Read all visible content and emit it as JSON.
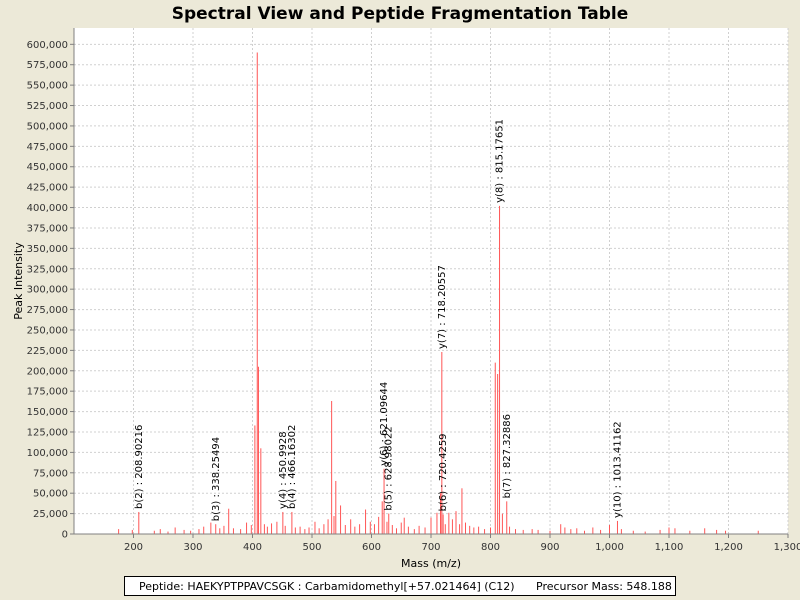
{
  "chart_data": {
    "type": "bar",
    "title": "Spectral View and Peptide Fragmentation Table",
    "xlabel": "Mass (m/z)",
    "ylabel": "Peak Intensity",
    "xlim": [
      100,
      1300
    ],
    "ylim": [
      0,
      620000
    ],
    "xticks": [
      200,
      300,
      400,
      500,
      600,
      700,
      800,
      900,
      1000,
      1100,
      1200,
      1300
    ],
    "xtick_labels": [
      "200",
      "300",
      "400",
      "500",
      "600",
      "700",
      "800",
      "900",
      "1,000",
      "1,100",
      "1,200",
      "1,300"
    ],
    "yticks": [
      0,
      25000,
      50000,
      75000,
      100000,
      125000,
      150000,
      175000,
      200000,
      225000,
      250000,
      275000,
      300000,
      325000,
      350000,
      375000,
      400000,
      425000,
      450000,
      475000,
      500000,
      525000,
      550000,
      575000,
      600000
    ],
    "ytick_labels": [
      "0",
      "25,000",
      "50,000",
      "75,000",
      "100,000",
      "125,000",
      "150,000",
      "175,000",
      "200,000",
      "225,000",
      "250,000",
      "275,000",
      "300,000",
      "325,000",
      "350,000",
      "375,000",
      "400,000",
      "425,000",
      "450,000",
      "475,000",
      "500,000",
      "525,000",
      "550,000",
      "575,000",
      "600,000"
    ],
    "grid": true,
    "bar_color": "#ff5555",
    "peaks": [
      [
        175,
        6000
      ],
      [
        198,
        5000
      ],
      [
        208.9,
        27000
      ],
      [
        235,
        4000
      ],
      [
        245,
        6000
      ],
      [
        258,
        3000
      ],
      [
        270,
        8000
      ],
      [
        285,
        5000
      ],
      [
        296,
        4000
      ],
      [
        310,
        6000
      ],
      [
        318,
        9000
      ],
      [
        330,
        14000
      ],
      [
        338.2,
        12000
      ],
      [
        345,
        7000
      ],
      [
        352,
        10000
      ],
      [
        360,
        31000
      ],
      [
        368,
        7000
      ],
      [
        380,
        6000
      ],
      [
        390,
        14000
      ],
      [
        398,
        11000
      ],
      [
        404,
        133000
      ],
      [
        408,
        590000
      ],
      [
        410,
        205000
      ],
      [
        414,
        105000
      ],
      [
        420,
        12000
      ],
      [
        425,
        9000
      ],
      [
        432,
        13000
      ],
      [
        441,
        15000
      ],
      [
        451,
        27000
      ],
      [
        455,
        10000
      ],
      [
        466.2,
        27000
      ],
      [
        472,
        8000
      ],
      [
        480,
        9000
      ],
      [
        488,
        6000
      ],
      [
        495,
        8000
      ],
      [
        505,
        15000
      ],
      [
        512,
        7000
      ],
      [
        520,
        12000
      ],
      [
        527,
        18000
      ],
      [
        533,
        163000
      ],
      [
        537,
        22000
      ],
      [
        540,
        65000
      ],
      [
        548,
        35000
      ],
      [
        556,
        11000
      ],
      [
        565,
        18000
      ],
      [
        572,
        9000
      ],
      [
        580,
        12000
      ],
      [
        590,
        30000
      ],
      [
        598,
        15000
      ],
      [
        605,
        12000
      ],
      [
        612,
        21000
      ],
      [
        618,
        40000
      ],
      [
        621.1,
        80000
      ],
      [
        626,
        15000
      ],
      [
        629,
        25000
      ],
      [
        635,
        11000
      ],
      [
        642,
        7000
      ],
      [
        650,
        14000
      ],
      [
        655,
        20000
      ],
      [
        662,
        9000
      ],
      [
        672,
        6000
      ],
      [
        680,
        10000
      ],
      [
        690,
        8000
      ],
      [
        700,
        20000
      ],
      [
        710,
        26000
      ],
      [
        716,
        50000
      ],
      [
        718.2,
        223000
      ],
      [
        720.4,
        24000
      ],
      [
        724,
        12000
      ],
      [
        730,
        26000
      ],
      [
        736,
        18000
      ],
      [
        742,
        28000
      ],
      [
        748,
        12000
      ],
      [
        752,
        56000
      ],
      [
        758,
        14000
      ],
      [
        765,
        10000
      ],
      [
        772,
        8000
      ],
      [
        780,
        9000
      ],
      [
        790,
        6000
      ],
      [
        800,
        8000
      ],
      [
        808,
        210000
      ],
      [
        812,
        196000
      ],
      [
        815.2,
        402000
      ],
      [
        820,
        25000
      ],
      [
        827.3,
        40000
      ],
      [
        832,
        9000
      ],
      [
        842,
        6000
      ],
      [
        855,
        5000
      ],
      [
        870,
        6000
      ],
      [
        880,
        5000
      ],
      [
        900,
        4000
      ],
      [
        918,
        12000
      ],
      [
        925,
        8000
      ],
      [
        935,
        6000
      ],
      [
        945,
        7000
      ],
      [
        958,
        4000
      ],
      [
        972,
        8000
      ],
      [
        985,
        5000
      ],
      [
        1000,
        11000
      ],
      [
        1013.4,
        16000
      ],
      [
        1020,
        6000
      ],
      [
        1040,
        4000
      ],
      [
        1060,
        3000
      ],
      [
        1085,
        5000
      ],
      [
        1100,
        8000
      ],
      [
        1110,
        7000
      ],
      [
        1135,
        4000
      ],
      [
        1160,
        7000
      ],
      [
        1180,
        5000
      ],
      [
        1195,
        4000
      ],
      [
        1250,
        4000
      ]
    ],
    "annotations": [
      {
        "label": "b(2) : 208.90216",
        "x": 208.9,
        "y": 27000
      },
      {
        "label": "b(3) : 338.25494",
        "x": 338.25,
        "y": 12000
      },
      {
        "label": "y(4) : 450.9928",
        "x": 450.99,
        "y": 27000
      },
      {
        "label": "b(4) : 466.16302",
        "x": 466.16,
        "y": 27000
      },
      {
        "label": "y(6) : 621.09644",
        "x": 621.1,
        "y": 80000
      },
      {
        "label": "b(5) : 628.98022",
        "x": 628.98,
        "y": 25000
      },
      {
        "label": "y(7) : 718.20557",
        "x": 718.21,
        "y": 223000
      },
      {
        "label": "b(6) : 720.4259",
        "x": 720.43,
        "y": 24000
      },
      {
        "label": "y(8) : 815.17651",
        "x": 815.18,
        "y": 402000
      },
      {
        "label": "b(7) : 827.32886",
        "x": 827.33,
        "y": 40000
      },
      {
        "label": "y(10) : 1013.41162",
        "x": 1013.41,
        "y": 16000
      }
    ]
  },
  "footer": {
    "peptide": "Peptide: HAEKYPTPPAVCSGK : Carbamidomethyl[+57.021464] (C12)",
    "precursor": "Precursor Mass: 548.188"
  }
}
